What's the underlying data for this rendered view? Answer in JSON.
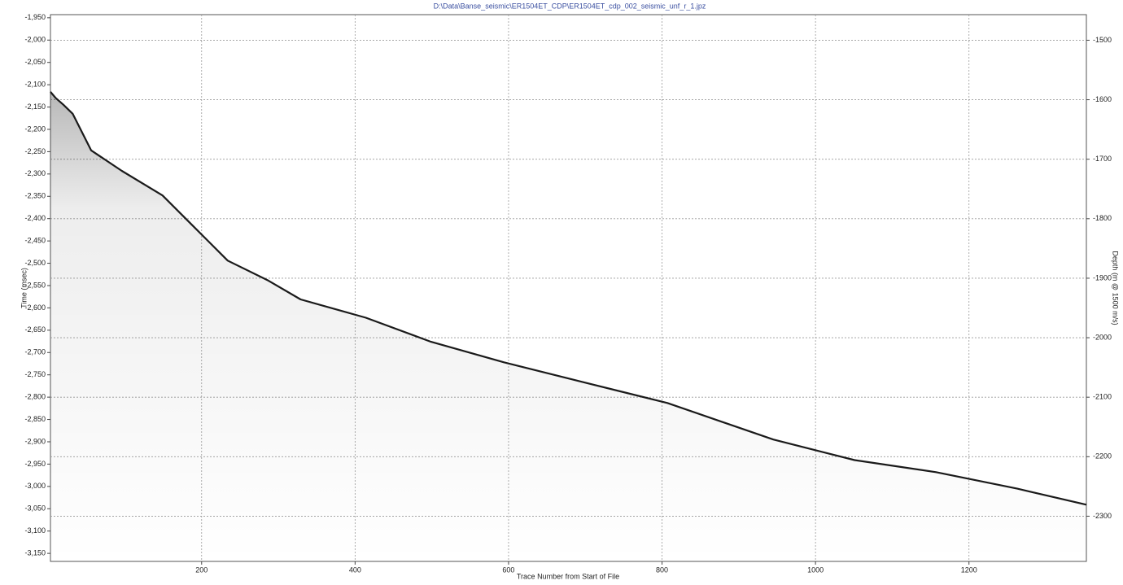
{
  "chart_data": {
    "type": "line",
    "title": "D:\\Data\\Banse_seismic\\ER1504ET_CDP\\ER1504ET_cdp_002_seismic_unf_r_1.jpz",
    "x_label": "Trace Number from Start of File",
    "y_label": "Time (msec)",
    "y2_label": "Depth (m @ 1500 m/s)",
    "x": [
      3,
      10,
      20,
      32,
      56,
      96,
      149,
      181,
      234,
      287,
      329,
      414,
      499,
      594,
      701,
      807,
      945,
      1051,
      1157,
      1263,
      1353
    ],
    "values": [
      -2116,
      -2130,
      -2145,
      -2165,
      -2247,
      -2293,
      -2348,
      -2403,
      -2494,
      -2539,
      -2581,
      -2622,
      -2676,
      -2722,
      -2768,
      -2813,
      -2895,
      -2941,
      -2968,
      -3005,
      -3041
    ],
    "color": "#1a1a1a",
    "xlim": [
      3,
      1353
    ],
    "xticks": [
      200,
      400,
      600,
      800,
      1000,
      1200
    ],
    "ylim": [
      -3168,
      -1943
    ],
    "yticks": [
      {
        "value": -1950,
        "label": "-1,950"
      },
      {
        "value": -2000,
        "label": "-2,000"
      },
      {
        "value": -2050,
        "label": "-2,050"
      },
      {
        "value": -2100,
        "label": "-2,100"
      },
      {
        "value": -2150,
        "label": "-2,150"
      },
      {
        "value": -2200,
        "label": "-2,200"
      },
      {
        "value": -2250,
        "label": "-2,250"
      },
      {
        "value": -2300,
        "label": "-2,300"
      },
      {
        "value": -2350,
        "label": "-2,350"
      },
      {
        "value": -2400,
        "label": "-2,400"
      },
      {
        "value": -2450,
        "label": "-2,450"
      },
      {
        "value": -2500,
        "label": "-2,500"
      },
      {
        "value": -2550,
        "label": "-2,550"
      },
      {
        "value": -2600,
        "label": "-2,600"
      },
      {
        "value": -2650,
        "label": "-2,650"
      },
      {
        "value": -2700,
        "label": "-2,700"
      },
      {
        "value": -2750,
        "label": "-2,750"
      },
      {
        "value": -2800,
        "label": "-2,800"
      },
      {
        "value": -2850,
        "label": "-2,850"
      },
      {
        "value": -2900,
        "label": "-2,900"
      },
      {
        "value": -2950,
        "label": "-2,950"
      },
      {
        "value": -3000,
        "label": "-3,000"
      },
      {
        "value": -3050,
        "label": "-3,050"
      },
      {
        "value": -3100,
        "label": "-3,100"
      },
      {
        "value": -3150,
        "label": "-3,150"
      }
    ],
    "y2lim": [
      -2376,
      -1457
    ],
    "y2ticks": [
      -1500,
      -1600,
      -1700,
      -1800,
      -1900,
      -2000,
      -2100,
      -2200,
      -2300
    ],
    "grid": true
  }
}
